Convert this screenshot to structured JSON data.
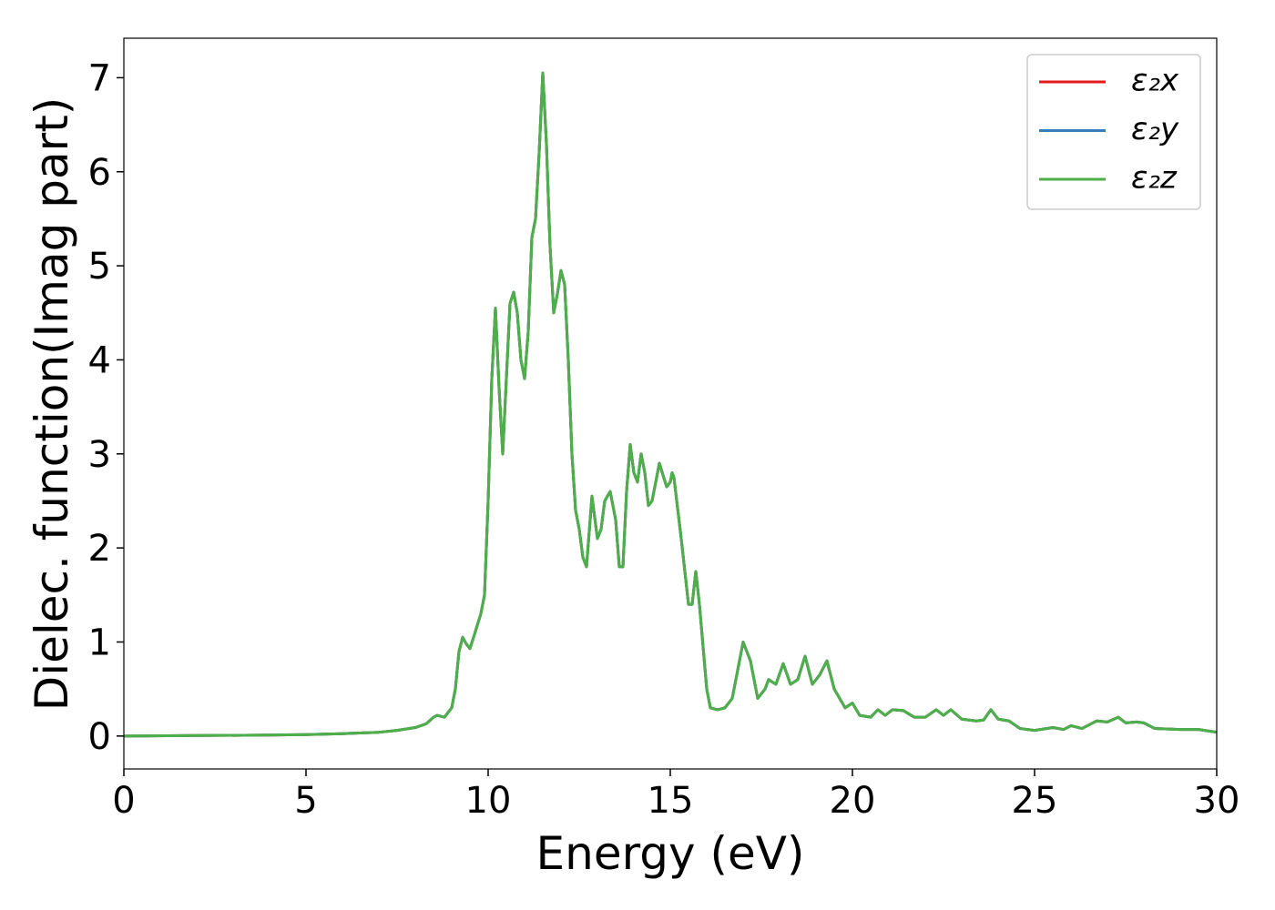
{
  "chart_data": {
    "type": "line",
    "xlabel": "Energy (eV)",
    "ylabel": "Dielec. function(Imag part)",
    "x": [
      0,
      2,
      4,
      5,
      6,
      7,
      7.5,
      8,
      8.3,
      8.5,
      8.6,
      8.8,
      9.0,
      9.1,
      9.2,
      9.3,
      9.4,
      9.5,
      9.6,
      9.8,
      9.9,
      10.0,
      10.1,
      10.2,
      10.3,
      10.4,
      10.5,
      10.6,
      10.7,
      10.8,
      10.9,
      11.0,
      11.1,
      11.2,
      11.3,
      11.4,
      11.5,
      11.6,
      11.7,
      11.8,
      11.9,
      12.0,
      12.1,
      12.2,
      12.3,
      12.4,
      12.5,
      12.6,
      12.7,
      12.8,
      12.85,
      12.9,
      13.0,
      13.1,
      13.2,
      13.35,
      13.5,
      13.6,
      13.7,
      13.8,
      13.9,
      14.0,
      14.1,
      14.2,
      14.3,
      14.4,
      14.5,
      14.7,
      14.9,
      15.0,
      15.05,
      15.1,
      15.3,
      15.5,
      15.6,
      15.7,
      15.8,
      16.0,
      16.1,
      16.3,
      16.5,
      16.7,
      16.9,
      17.0,
      17.2,
      17.4,
      17.6,
      17.7,
      17.9,
      18.1,
      18.3,
      18.5,
      18.7,
      18.9,
      19.1,
      19.3,
      19.5,
      19.8,
      20.0,
      20.2,
      20.5,
      20.7,
      20.9,
      21.1,
      21.4,
      21.7,
      22.0,
      22.3,
      22.5,
      22.7,
      23.0,
      23.4,
      23.6,
      23.8,
      24.0,
      24.3,
      24.6,
      25.0,
      25.5,
      25.8,
      26.0,
      26.3,
      26.7,
      27.0,
      27.3,
      27.5,
      27.8,
      28.0,
      28.3,
      29.0,
      29.5,
      30.0
    ],
    "series": [
      {
        "name": "ε₂x",
        "color": "#e41a1c",
        "values": [
          0.0,
          0.005,
          0.01,
          0.015,
          0.025,
          0.04,
          0.06,
          0.09,
          0.13,
          0.2,
          0.22,
          0.2,
          0.3,
          0.5,
          0.9,
          1.05,
          0.98,
          0.93,
          1.05,
          1.3,
          1.5,
          2.5,
          3.8,
          4.55,
          3.7,
          3.0,
          3.8,
          4.6,
          4.72,
          4.5,
          4.0,
          3.8,
          4.3,
          5.3,
          5.5,
          6.2,
          7.05,
          6.3,
          5.2,
          4.5,
          4.7,
          4.95,
          4.8,
          4.0,
          3.0,
          2.4,
          2.2,
          1.9,
          1.8,
          2.3,
          2.55,
          2.4,
          2.1,
          2.2,
          2.5,
          2.6,
          2.3,
          1.8,
          1.8,
          2.6,
          3.1,
          2.8,
          2.7,
          3.0,
          2.8,
          2.45,
          2.5,
          2.9,
          2.65,
          2.7,
          2.8,
          2.75,
          2.1,
          1.4,
          1.4,
          1.75,
          1.4,
          0.5,
          0.3,
          0.28,
          0.3,
          0.4,
          0.8,
          1.0,
          0.8,
          0.4,
          0.5,
          0.6,
          0.55,
          0.77,
          0.55,
          0.6,
          0.85,
          0.55,
          0.65,
          0.8,
          0.5,
          0.3,
          0.35,
          0.22,
          0.2,
          0.28,
          0.22,
          0.28,
          0.27,
          0.2,
          0.2,
          0.28,
          0.22,
          0.28,
          0.18,
          0.16,
          0.17,
          0.28,
          0.18,
          0.16,
          0.08,
          0.06,
          0.09,
          0.07,
          0.11,
          0.08,
          0.16,
          0.15,
          0.2,
          0.14,
          0.15,
          0.14,
          0.08,
          0.07,
          0.07,
          0.04
        ]
      },
      {
        "name": "ε₂y",
        "color": "#377eb8",
        "values": [
          0.0,
          0.005,
          0.01,
          0.015,
          0.025,
          0.04,
          0.06,
          0.09,
          0.13,
          0.2,
          0.22,
          0.2,
          0.3,
          0.5,
          0.9,
          1.05,
          0.98,
          0.93,
          1.05,
          1.3,
          1.5,
          2.5,
          3.8,
          4.55,
          3.7,
          3.0,
          3.8,
          4.6,
          4.72,
          4.5,
          4.0,
          3.8,
          4.3,
          5.3,
          5.5,
          6.2,
          7.05,
          6.3,
          5.2,
          4.5,
          4.7,
          4.95,
          4.8,
          4.0,
          3.0,
          2.4,
          2.2,
          1.9,
          1.8,
          2.3,
          2.55,
          2.4,
          2.1,
          2.2,
          2.5,
          2.6,
          2.3,
          1.8,
          1.8,
          2.6,
          3.1,
          2.8,
          2.7,
          3.0,
          2.8,
          2.45,
          2.5,
          2.9,
          2.65,
          2.7,
          2.8,
          2.75,
          2.1,
          1.4,
          1.4,
          1.75,
          1.4,
          0.5,
          0.3,
          0.28,
          0.3,
          0.4,
          0.8,
          1.0,
          0.8,
          0.4,
          0.5,
          0.6,
          0.55,
          0.77,
          0.55,
          0.6,
          0.85,
          0.55,
          0.65,
          0.8,
          0.5,
          0.3,
          0.35,
          0.22,
          0.2,
          0.28,
          0.22,
          0.28,
          0.27,
          0.2,
          0.2,
          0.28,
          0.22,
          0.28,
          0.18,
          0.16,
          0.17,
          0.28,
          0.18,
          0.16,
          0.08,
          0.06,
          0.09,
          0.07,
          0.11,
          0.08,
          0.16,
          0.15,
          0.2,
          0.14,
          0.15,
          0.14,
          0.08,
          0.07,
          0.07,
          0.04
        ]
      },
      {
        "name": "ε₂z",
        "color": "#4daf4a",
        "values": [
          0.0,
          0.005,
          0.01,
          0.015,
          0.025,
          0.04,
          0.06,
          0.09,
          0.13,
          0.2,
          0.22,
          0.2,
          0.3,
          0.5,
          0.9,
          1.05,
          0.98,
          0.93,
          1.05,
          1.3,
          1.5,
          2.5,
          3.8,
          4.55,
          3.7,
          3.0,
          3.8,
          4.6,
          4.72,
          4.5,
          4.0,
          3.8,
          4.3,
          5.3,
          5.5,
          6.2,
          7.05,
          6.3,
          5.2,
          4.5,
          4.7,
          4.95,
          4.8,
          4.0,
          3.0,
          2.4,
          2.2,
          1.9,
          1.8,
          2.3,
          2.55,
          2.4,
          2.1,
          2.2,
          2.5,
          2.6,
          2.3,
          1.8,
          1.8,
          2.6,
          3.1,
          2.8,
          2.7,
          3.0,
          2.8,
          2.45,
          2.5,
          2.9,
          2.65,
          2.7,
          2.8,
          2.75,
          2.1,
          1.4,
          1.4,
          1.75,
          1.4,
          0.5,
          0.3,
          0.28,
          0.3,
          0.4,
          0.8,
          1.0,
          0.8,
          0.4,
          0.5,
          0.6,
          0.55,
          0.77,
          0.55,
          0.6,
          0.85,
          0.55,
          0.65,
          0.8,
          0.5,
          0.3,
          0.35,
          0.22,
          0.2,
          0.28,
          0.22,
          0.28,
          0.27,
          0.2,
          0.2,
          0.28,
          0.22,
          0.28,
          0.18,
          0.16,
          0.17,
          0.28,
          0.18,
          0.16,
          0.08,
          0.06,
          0.09,
          0.07,
          0.11,
          0.08,
          0.16,
          0.15,
          0.2,
          0.14,
          0.15,
          0.14,
          0.08,
          0.07,
          0.07,
          0.04
        ]
      }
    ],
    "xlim": [
      0,
      30
    ],
    "ylim": [
      -0.35,
      7.42
    ],
    "xticks": [
      0,
      5,
      10,
      15,
      20,
      25,
      30
    ],
    "yticks": [
      0,
      1,
      2,
      3,
      4,
      5,
      6,
      7
    ],
    "legend": "upper right"
  }
}
